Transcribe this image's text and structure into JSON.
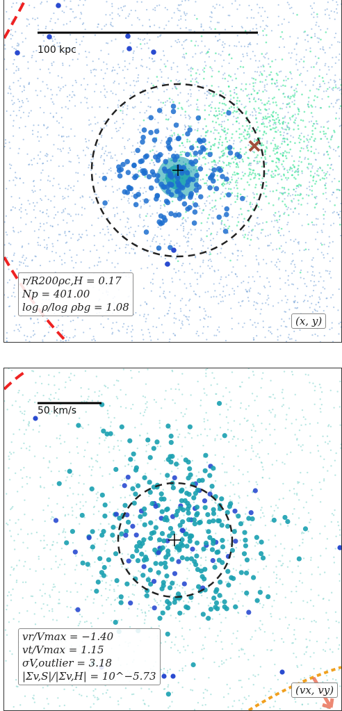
{
  "chart_data": [
    {
      "type": "scatter",
      "panel": "position",
      "scale_bar": "100 kpc",
      "stats": [
        "r/R200ρc,H = 0.17",
        "Np = 401.00",
        "log ρ/log ρbg = 1.08"
      ],
      "coord_label": "(x, y)",
      "center_marker": "+",
      "offset_marker": "x",
      "colors": {
        "background_points": "#6f9fd6",
        "field_points": "#22e08a",
        "halo_points": "#1d6fcf",
        "core": "#0a9aa8",
        "circle": "#222222",
        "boundary": "#ee2222",
        "offset": "#a0503a"
      }
    },
    {
      "type": "scatter",
      "panel": "velocity",
      "scale_bar": "50 km/s",
      "stats": [
        "vr/Vmax = −1.40",
        "vt/Vmax = 1.15",
        "σV,outlier = 3.18",
        "|Σv,S|/|Σv,H| = 10^−5.73"
      ],
      "coord_label": "(vx, vy)",
      "center_marker": "+",
      "colors": {
        "background_points": "#7fd3cc",
        "halo_points": "#1aa0b0",
        "blue_points": "#2a4bd0",
        "circle": "#222222",
        "boundary": "#ee2222",
        "arrow": "#f0a020",
        "vector": "#e86a50"
      }
    }
  ]
}
